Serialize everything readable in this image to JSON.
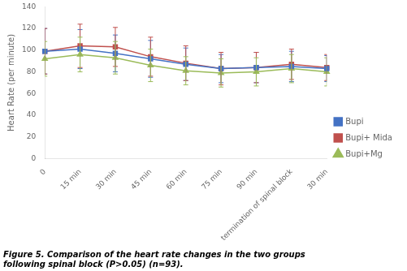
{
  "chart_data": {
    "type": "line",
    "categories": [
      "0",
      "15 min",
      "30 min",
      "45 min",
      "60 min",
      "75 min",
      "90 min",
      "termination of spinal block",
      "30 min"
    ],
    "series": [
      {
        "name": "Bupi",
        "color": "#4472C4",
        "marker": "square",
        "values": [
          99,
          101,
          97,
          92,
          87,
          83,
          84,
          85,
          83
        ],
        "errors": [
          21,
          18,
          17,
          17,
          15,
          13,
          14,
          14,
          12
        ]
      },
      {
        "name": "Bupi+ Mida",
        "color": "#C0504D",
        "marker": "square",
        "values": [
          99,
          104,
          103,
          94,
          88,
          83,
          84,
          87,
          84
        ],
        "errors": [
          21,
          20,
          18,
          18,
          16,
          15,
          14,
          14,
          12
        ]
      },
      {
        "name": "Bupi+Mg",
        "color": "#9BBB59",
        "marker": "triangle",
        "values": [
          92,
          96,
          93,
          86,
          81,
          79,
          80,
          83,
          80
        ],
        "errors": [
          16,
          16,
          15,
          15,
          13,
          13,
          13,
          13,
          13
        ]
      }
    ],
    "ylabel": "Heart Rate (per minute)",
    "ylim": [
      0,
      140
    ],
    "yticks": [
      0,
      20,
      40,
      60,
      80,
      100,
      120,
      140
    ],
    "grid": false,
    "legend": "right",
    "caption": [
      "Figure 5. Comparison of the heart rate changes in the two groups",
      "following spinal block (P>0.05) (n=93)."
    ]
  }
}
